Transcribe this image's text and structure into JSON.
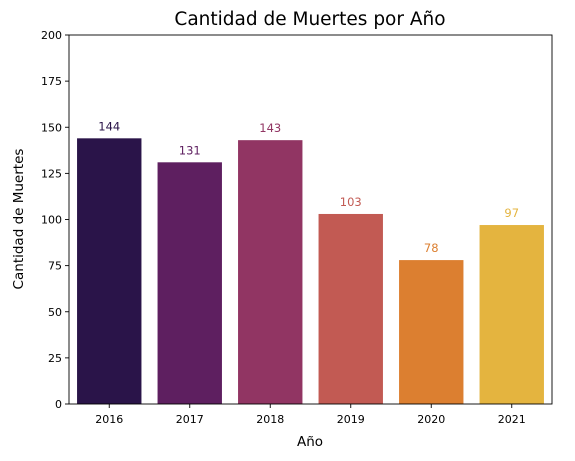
{
  "chart_data": {
    "type": "bar",
    "title": "Cantidad de Muertes por Año",
    "xlabel": "Año",
    "ylabel": "Cantidad de Muertes",
    "categories": [
      "2016",
      "2017",
      "2018",
      "2019",
      "2020",
      "2021"
    ],
    "values": [
      144,
      131,
      143,
      103,
      78,
      97
    ],
    "data_labels": [
      "144",
      "131",
      "143",
      "103",
      "78",
      "97"
    ],
    "colors": [
      "#2a1449",
      "#5e1f60",
      "#913563",
      "#c25a53",
      "#dc7f30",
      "#e4b43f"
    ],
    "ylim": [
      0,
      200
    ],
    "yticks": [
      0,
      25,
      50,
      75,
      100,
      125,
      150,
      175,
      200
    ],
    "ytick_labels": [
      "0",
      "25",
      "50",
      "75",
      "100",
      "125",
      "150",
      "175",
      "200"
    ],
    "grid": false,
    "legend": "none"
  }
}
